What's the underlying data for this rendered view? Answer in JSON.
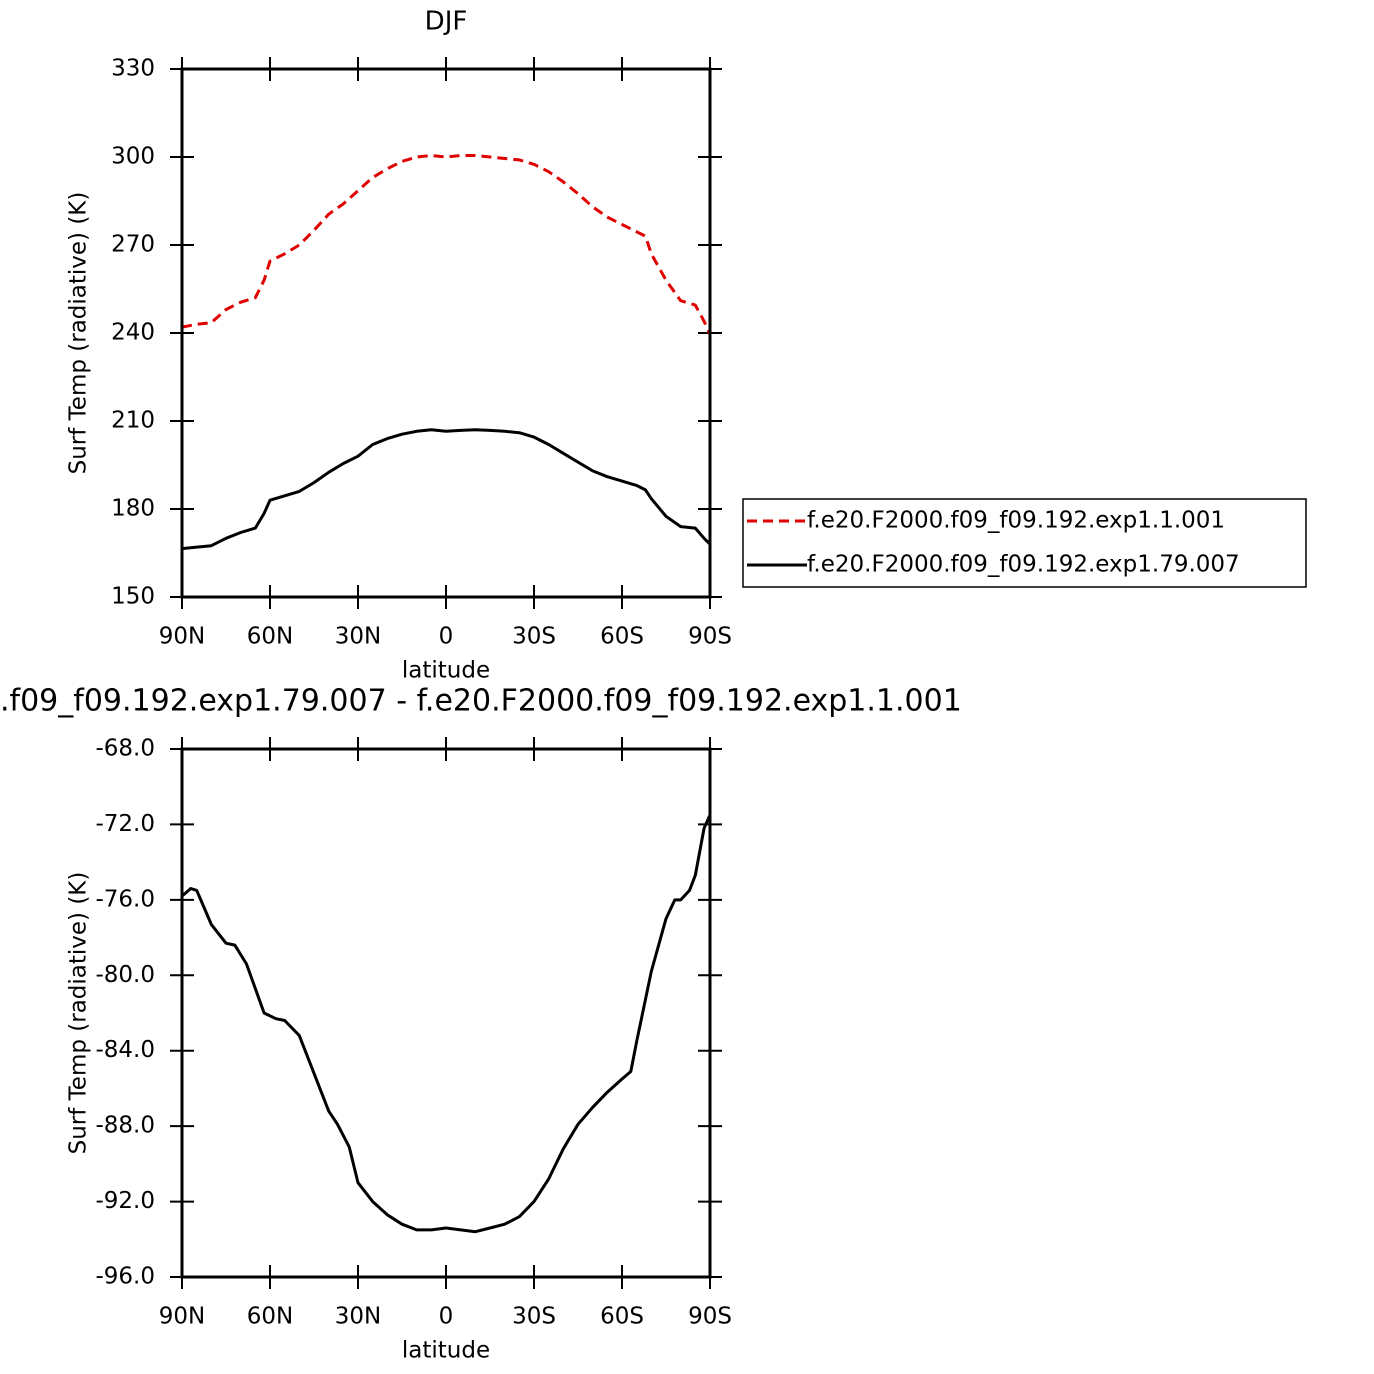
{
  "chart_data": [
    {
      "type": "line",
      "title": "DJF",
      "xlabel": "latitude",
      "ylabel": "Surf Temp (radiative) (K)",
      "x": [
        90,
        85,
        80,
        75,
        70,
        65,
        62,
        60,
        55,
        50,
        45,
        40,
        35,
        30,
        25,
        20,
        15,
        10,
        5,
        0,
        -5,
        -10,
        -15,
        -20,
        -25,
        -30,
        -35,
        -40,
        -45,
        -50,
        -55,
        -60,
        -65,
        -68,
        -70,
        -75,
        -80,
        -85,
        -88,
        -90
      ],
      "xlim": [
        90,
        -90
      ],
      "xticks": [
        {
          "value": 90,
          "label": "90N"
        },
        {
          "value": 60,
          "label": "60N"
        },
        {
          "value": 30,
          "label": "30N"
        },
        0,
        {
          "value": -30,
          "label": "30S"
        },
        {
          "value": -60,
          "label": "60S"
        },
        {
          "value": -90,
          "label": "90S"
        }
      ],
      "ylim": [
        150,
        330
      ],
      "yticks": [
        150,
        180,
        210,
        240,
        270,
        300,
        330
      ],
      "legend": "right",
      "series": [
        {
          "name": "f.e20.F2000.f09_f09.192.exp1.1.001",
          "color": "#e00000",
          "line_style": "dashed",
          "values": [
            242,
            243,
            243.5,
            248,
            250.5,
            252,
            258,
            264.5,
            267,
            270,
            275,
            280.5,
            284,
            288.5,
            293,
            296,
            298.5,
            300,
            300.5,
            300,
            300.5,
            300.5,
            300,
            299.5,
            299,
            297.5,
            295,
            291.5,
            287.5,
            283,
            279.5,
            277,
            274.5,
            273,
            267,
            258,
            251,
            249.5,
            244,
            239.5
          ]
        },
        {
          "name": "f.e20.F2000.f09_f09.192.exp1.79.007",
          "color": "#000000",
          "line_style": "solid",
          "values": [
            166.5,
            167,
            167.5,
            170,
            172,
            173.5,
            178.5,
            183,
            184.5,
            186,
            189,
            192.5,
            195.5,
            198,
            202,
            204,
            205.5,
            206.5,
            207,
            206.5,
            206.8,
            207,
            206.8,
            206.5,
            206,
            204.5,
            202,
            199,
            196,
            193,
            191,
            189.5,
            188,
            186.5,
            183.5,
            177.5,
            174,
            173.5,
            170,
            168
          ]
        }
      ]
    },
    {
      "type": "line",
      "title": ".f09_f09.192.exp1.79.007 - f.e20.F2000.f09_f09.192.exp1.1.001",
      "xlabel": "latitude",
      "ylabel": "Surf Temp (radiative) (K)",
      "x": [
        90,
        87,
        85,
        80,
        75,
        72,
        68,
        65,
        62,
        58,
        55,
        50,
        45,
        40,
        37,
        33,
        30,
        25,
        20,
        15,
        10,
        5,
        0,
        -5,
        -10,
        -15,
        -20,
        -25,
        -30,
        -35,
        -40,
        -45,
        -50,
        -55,
        -60,
        -63,
        -65,
        -70,
        -75,
        -78,
        -80,
        -83,
        -85,
        -88,
        -90
      ],
      "xlim": [
        90,
        -90
      ],
      "xticks": [
        {
          "value": 90,
          "label": "90N"
        },
        {
          "value": 60,
          "label": "60N"
        },
        {
          "value": 30,
          "label": "30N"
        },
        0,
        {
          "value": -30,
          "label": "30S"
        },
        {
          "value": -60,
          "label": "60S"
        },
        {
          "value": -90,
          "label": "90S"
        }
      ],
      "ylim": [
        -96,
        -68
      ],
      "yticks": [
        {
          "value": -96,
          "label": "-96.0"
        },
        {
          "value": -92,
          "label": "-92.0"
        },
        {
          "value": -88,
          "label": "-88.0"
        },
        {
          "value": -84,
          "label": "-84.0"
        },
        {
          "value": -80,
          "label": "-80.0"
        },
        {
          "value": -76,
          "label": "-76.0"
        },
        {
          "value": -72,
          "label": "-72.0"
        },
        {
          "value": -68,
          "label": "-68.0"
        }
      ],
      "series": [
        {
          "color": "#000000",
          "line_style": "solid",
          "values": [
            -75.8,
            -75.4,
            -75.5,
            -77.3,
            -78.3,
            -78.4,
            -79.4,
            -80.7,
            -82.0,
            -82.3,
            -82.4,
            -83.2,
            -85.2,
            -87.2,
            -87.9,
            -89.1,
            -91.0,
            -92.0,
            -92.7,
            -93.2,
            -93.5,
            -93.5,
            -93.4,
            -93.5,
            -93.6,
            -93.4,
            -93.2,
            -92.8,
            -92.0,
            -90.8,
            -89.2,
            -87.9,
            -87.0,
            -86.2,
            -85.5,
            -85.1,
            -83.5,
            -79.8,
            -77.0,
            -76.0,
            -76.0,
            -75.5,
            -74.7,
            -72.2,
            -71.5
          ]
        }
      ]
    }
  ]
}
